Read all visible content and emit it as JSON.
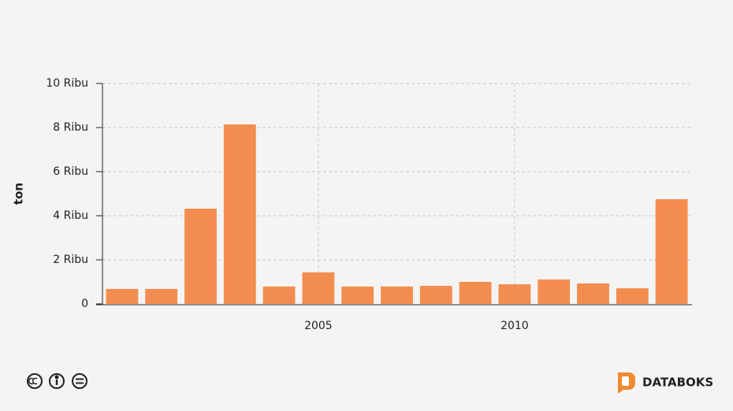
{
  "chart_data": {
    "type": "bar",
    "ylabel": "ton",
    "x": [
      2000,
      2001,
      2002,
      2003,
      2004,
      2005,
      2006,
      2007,
      2008,
      2009,
      2010,
      2011,
      2012,
      2013,
      2014
    ],
    "values": [
      680,
      680,
      4320,
      8140,
      790,
      1430,
      790,
      790,
      820,
      1000,
      890,
      1110,
      930,
      710,
      4750
    ],
    "color": "#f38d4f",
    "xlim": [
      1999.5,
      2014.5
    ],
    "xticks": [
      2005,
      2010
    ],
    "ylim": [
      0,
      10000
    ],
    "yticks": [
      0,
      {
        "value": 2000,
        "label": "2 Ribu"
      },
      {
        "value": 4000,
        "label": "4 Ribu"
      },
      {
        "value": 6000,
        "label": "6 Ribu"
      },
      {
        "value": 8000,
        "label": "8 Ribu"
      },
      {
        "value": 10000,
        "label": "10 Ribu"
      }
    ],
    "grid": true
  },
  "brand": "DATABOKS"
}
